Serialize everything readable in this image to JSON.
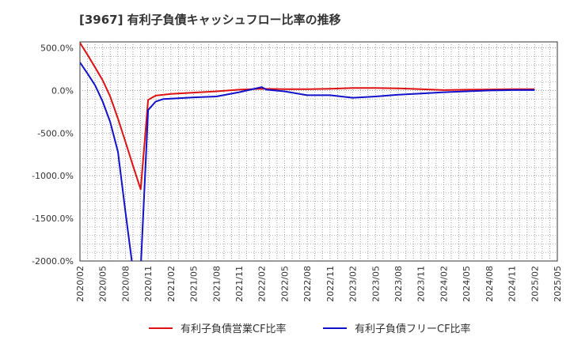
{
  "chart_data": {
    "type": "line",
    "title": "[3967]  有利子負債キャッシュフロー比率の推移",
    "xlabel": "",
    "ylabel": "",
    "ylim": [
      -2000,
      500
    ],
    "yticks": [
      500,
      0,
      -500,
      -1000,
      -1500,
      -2000
    ],
    "ytick_labels": [
      "500.0%",
      "0.0%",
      "-500.0%",
      "-1000.0%",
      "-1500.0%",
      "-2000.0%"
    ],
    "x_categories": [
      "2020/02",
      "2020/05",
      "2020/08",
      "2020/11",
      "2021/02",
      "2021/05",
      "2021/08",
      "2021/11",
      "2022/02",
      "2022/05",
      "2022/08",
      "2022/11",
      "2023/02",
      "2023/05",
      "2023/08",
      "2023/11",
      "2024/02",
      "2024/05",
      "2024/08",
      "2024/11",
      "2025/02",
      "2025/05"
    ],
    "grid": true,
    "legend_position": "bottom",
    "series": [
      {
        "name": "有利子負債営業CF比率",
        "color": "#dd1111",
        "points": [
          {
            "x": 0,
            "y": 560
          },
          {
            "x": 0.33,
            "y": 420
          },
          {
            "x": 0.67,
            "y": 270
          },
          {
            "x": 1,
            "y": 120
          },
          {
            "x": 1.33,
            "y": -70
          },
          {
            "x": 1.67,
            "y": -330
          },
          {
            "x": 2,
            "y": -600
          },
          {
            "x": 2.33,
            "y": -880
          },
          {
            "x": 2.67,
            "y": -1160
          },
          {
            "x": 3,
            "y": -110
          },
          {
            "x": 3.33,
            "y": -60
          },
          {
            "x": 4,
            "y": -40
          },
          {
            "x": 5,
            "y": -25
          },
          {
            "x": 6,
            "y": -10
          },
          {
            "x": 7,
            "y": 10
          },
          {
            "x": 8,
            "y": 20
          },
          {
            "x": 9,
            "y": 15
          },
          {
            "x": 10,
            "y": 15
          },
          {
            "x": 11,
            "y": 20
          },
          {
            "x": 12,
            "y": 30
          },
          {
            "x": 13,
            "y": 30
          },
          {
            "x": 14,
            "y": 25
          },
          {
            "x": 15,
            "y": 15
          },
          {
            "x": 16,
            "y": 5
          },
          {
            "x": 17,
            "y": 10
          },
          {
            "x": 18,
            "y": 12
          },
          {
            "x": 19,
            "y": 15
          },
          {
            "x": 20,
            "y": 15
          }
        ]
      },
      {
        "name": "有利子負債フリーCF比率",
        "color": "#1111cc",
        "points": [
          {
            "x": 0,
            "y": 330
          },
          {
            "x": 0.33,
            "y": 200
          },
          {
            "x": 0.67,
            "y": 60
          },
          {
            "x": 1,
            "y": -130
          },
          {
            "x": 1.33,
            "y": -370
          },
          {
            "x": 1.67,
            "y": -720
          },
          {
            "x": 2,
            "y": -1420
          },
          {
            "x": 2.33,
            "y": -2100
          },
          {
            "x": 2.67,
            "y": -2100
          },
          {
            "x": 3,
            "y": -230
          },
          {
            "x": 3.33,
            "y": -130
          },
          {
            "x": 3.67,
            "y": -100
          },
          {
            "x": 4,
            "y": -95
          },
          {
            "x": 5,
            "y": -80
          },
          {
            "x": 6,
            "y": -70
          },
          {
            "x": 7,
            "y": -20
          },
          {
            "x": 8,
            "y": 40
          },
          {
            "x": 8.2,
            "y": 10
          },
          {
            "x": 9,
            "y": -10
          },
          {
            "x": 10,
            "y": -55
          },
          {
            "x": 11,
            "y": -55
          },
          {
            "x": 12,
            "y": -85
          },
          {
            "x": 13,
            "y": -70
          },
          {
            "x": 14,
            "y": -50
          },
          {
            "x": 15,
            "y": -35
          },
          {
            "x": 16,
            "y": -20
          },
          {
            "x": 17,
            "y": -10
          },
          {
            "x": 18,
            "y": 0
          },
          {
            "x": 19,
            "y": 5
          },
          {
            "x": 20,
            "y": 5
          }
        ]
      }
    ]
  }
}
